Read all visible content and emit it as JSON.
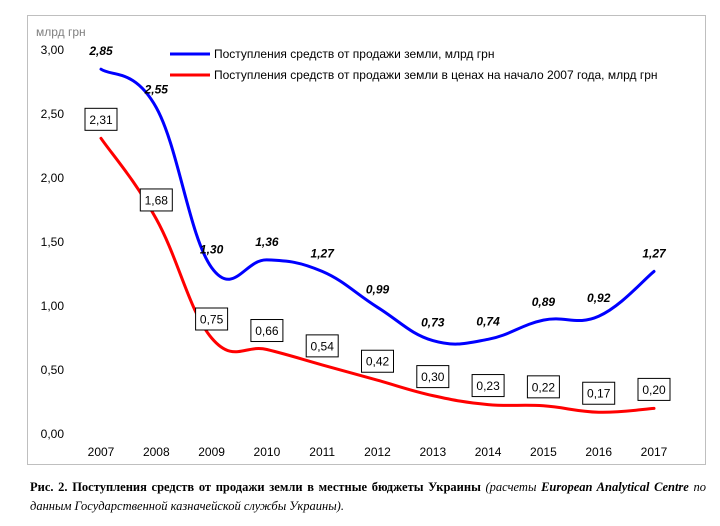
{
  "chart_data": {
    "type": "line",
    "ylabel": "млрд грн",
    "categories": [
      "2007",
      "2008",
      "2009",
      "2010",
      "2011",
      "2012",
      "2013",
      "2014",
      "2015",
      "2016",
      "2017"
    ],
    "ylim": [
      0,
      3.0
    ],
    "yticks": [
      "0,00",
      "0,50",
      "1,00",
      "1,50",
      "2,00",
      "2,50",
      "3,00"
    ],
    "ytick_values": [
      0,
      0.5,
      1.0,
      1.5,
      2.0,
      2.5,
      3.0
    ],
    "grid": false,
    "legend_position": "top",
    "series": [
      {
        "name": "Поступления средств от продажи земли, млрд грн",
        "color": "#0000ff",
        "values": [
          2.85,
          2.55,
          1.3,
          1.36,
          1.27,
          0.99,
          0.73,
          0.74,
          0.89,
          0.92,
          1.27
        ],
        "labels": [
          "2,85",
          "2,55",
          "1,30",
          "1,36",
          "1,27",
          "0,99",
          "0,73",
          "0,74",
          "0,89",
          "0,92",
          "1,27"
        ],
        "label_style": "bold-italic"
      },
      {
        "name": "Поступления средств от продажи земли в ценах на начало 2007 года, млрд грн",
        "color": "#ff0000",
        "values": [
          2.31,
          1.68,
          0.75,
          0.66,
          0.54,
          0.42,
          0.3,
          0.23,
          0.22,
          0.17,
          0.2
        ],
        "labels": [
          "2,31",
          "1,68",
          "0,75",
          "0,66",
          "0,54",
          "0,42",
          "0,30",
          "0,23",
          "0,22",
          "0,17",
          "0,20"
        ],
        "label_style": "boxed"
      }
    ]
  },
  "caption": {
    "part1": "Рис. 2. Поступления средств от продажи земли в местные бюджеты Украины",
    "part2": " (расчеты ",
    "part3": "European Analytical Centre",
    "part4": " по данным Государственной казначейской службы Украины)."
  }
}
